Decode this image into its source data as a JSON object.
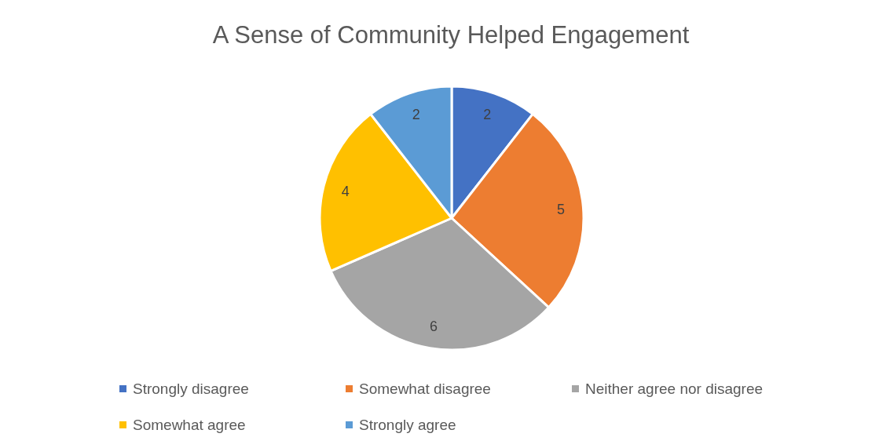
{
  "chart_data": {
    "type": "pie",
    "title": "A Sense of Community Helped Engagement",
    "categories": [
      "Strongly disagree",
      "Somewhat disagree",
      "Neither agree nor disagree",
      "Somewhat agree",
      "Strongly agree"
    ],
    "values": [
      2,
      5,
      6,
      4,
      2
    ],
    "colors": [
      "#4472c4",
      "#ed7d31",
      "#a5a5a5",
      "#ffc000",
      "#5b9bd5"
    ],
    "data_labels": true,
    "legend": "bottom"
  }
}
